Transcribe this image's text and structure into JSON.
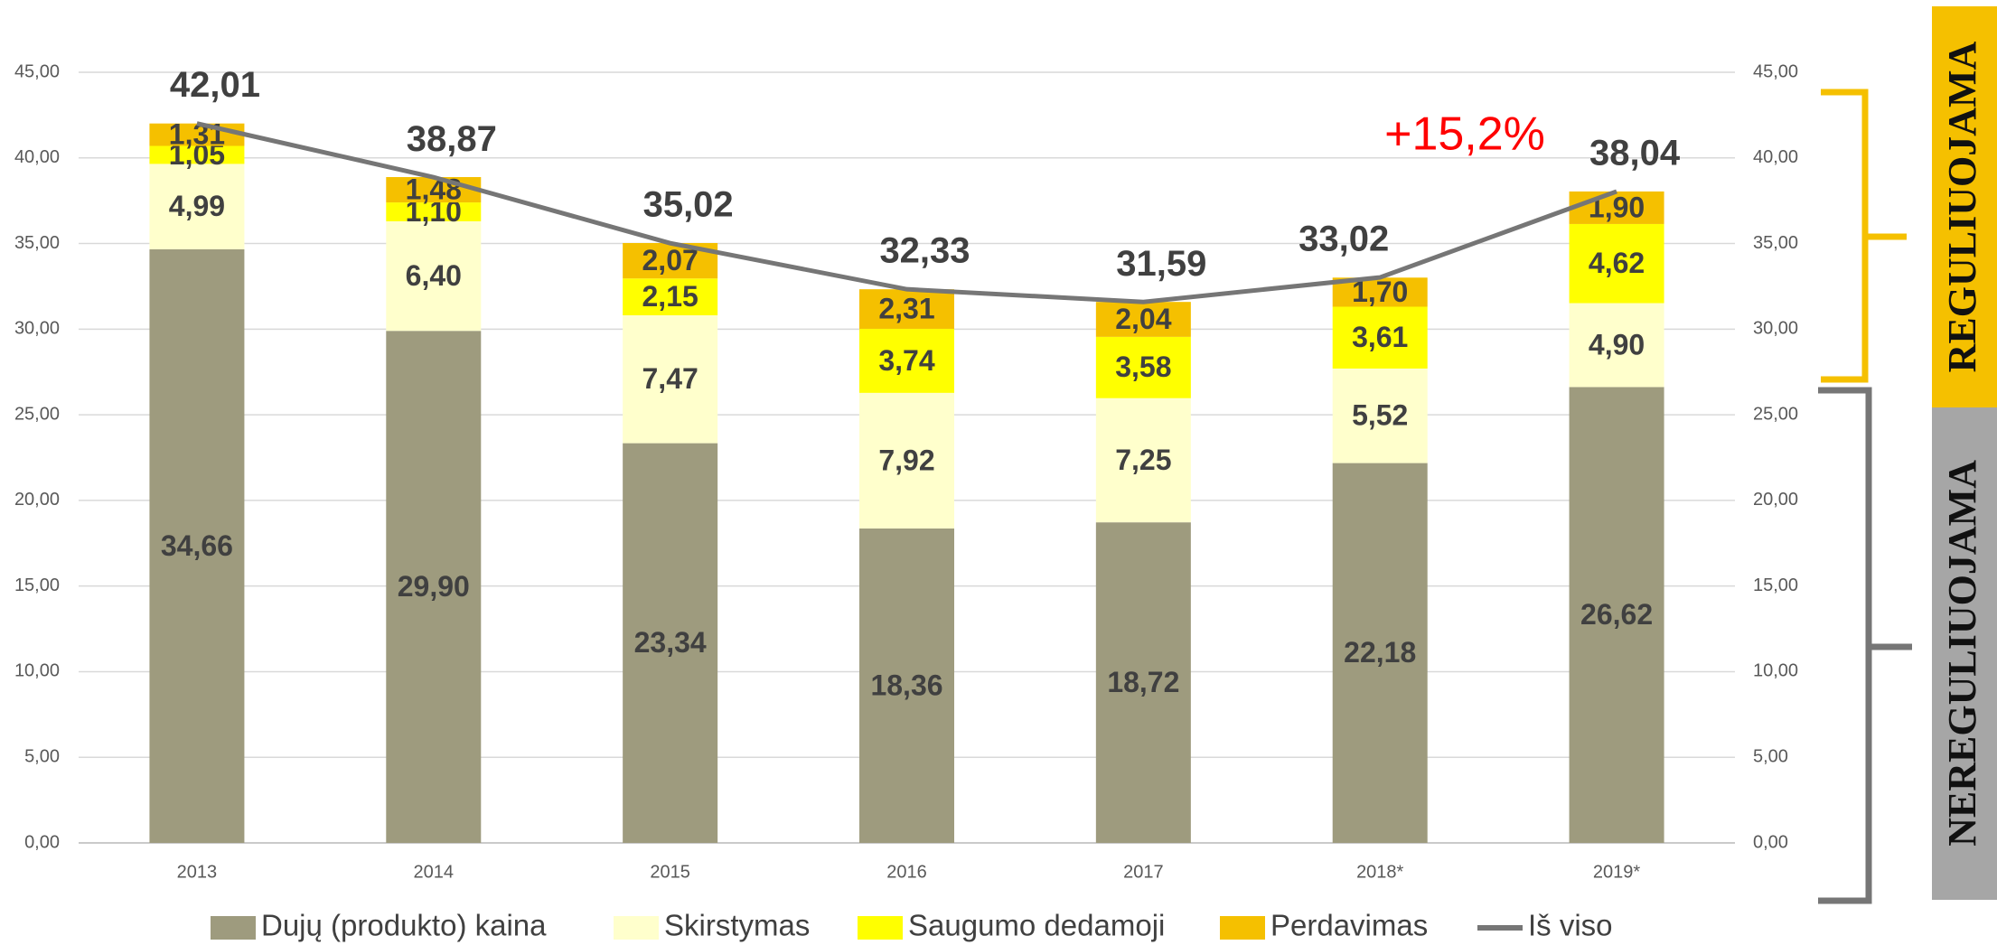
{
  "chart_data": {
    "type": "bar",
    "stacked": true,
    "categories": [
      "2013",
      "2014",
      "2015",
      "2016",
      "2017",
      "2018*",
      "2019*"
    ],
    "series": [
      {
        "name": "Dujų (produkto) kaina",
        "type": "bar",
        "color": "#9e9b7e",
        "values": [
          34.66,
          29.9,
          23.34,
          18.36,
          18.72,
          22.18,
          26.62
        ],
        "value_labels": [
          "34,66",
          "29,90",
          "23,34",
          "18,36",
          "18,72",
          "22,18",
          "26,62"
        ]
      },
      {
        "name": "Skirstymas",
        "type": "bar",
        "color": "#ffffcc",
        "values": [
          4.99,
          6.4,
          7.47,
          7.92,
          7.25,
          5.52,
          4.9
        ],
        "value_labels": [
          "4,99",
          "6,40",
          "7,47",
          "7,92",
          "7,25",
          "5,52",
          "4,90"
        ]
      },
      {
        "name": "Saugumo dedamoji",
        "type": "bar",
        "color": "#ffff00",
        "values": [
          1.05,
          1.1,
          2.15,
          3.74,
          3.58,
          3.61,
          4.62
        ],
        "value_labels": [
          "1,05",
          "1,10",
          "2,15",
          "3,74",
          "3,58",
          "3,61",
          "4,62"
        ]
      },
      {
        "name": "Perdavimas",
        "type": "bar",
        "color": "#f5c000",
        "values": [
          1.31,
          1.48,
          2.07,
          2.31,
          2.04,
          1.7,
          1.9
        ],
        "value_labels": [
          "1,31",
          "1,48",
          "2,07",
          "2,31",
          "2,04",
          "1,70",
          "1,90"
        ]
      },
      {
        "name": "Iš viso",
        "type": "line",
        "color": "#767676",
        "values": [
          42.01,
          38.87,
          35.02,
          32.33,
          31.59,
          33.02,
          38.04
        ],
        "value_labels": [
          "42,01",
          "38,87",
          "35,02",
          "32,33",
          "31,59",
          "33,02",
          "38,04"
        ]
      }
    ],
    "ylim": [
      0,
      45
    ],
    "yticks": [
      {
        "value": 0,
        "label": "0,00"
      },
      {
        "value": 5,
        "label": "5,00"
      },
      {
        "value": 10,
        "label": "10,00"
      },
      {
        "value": 15,
        "label": "15,00"
      },
      {
        "value": 20,
        "label": "20,00"
      },
      {
        "value": 25,
        "label": "25,00"
      },
      {
        "value": 30,
        "label": "30,00"
      },
      {
        "value": 35,
        "label": "35,00"
      },
      {
        "value": 40,
        "label": "40,00"
      },
      {
        "value": 45,
        "label": "45,00"
      }
    ],
    "y2lim": [
      0,
      45
    ],
    "y2ticks": [
      {
        "value": 0,
        "label": "0,00"
      },
      {
        "value": 5,
        "label": "5,00"
      },
      {
        "value": 10,
        "label": "10,00"
      },
      {
        "value": 15,
        "label": "15,00"
      },
      {
        "value": 20,
        "label": "20,00"
      },
      {
        "value": 25,
        "label": "25,00"
      },
      {
        "value": 30,
        "label": "30,00"
      },
      {
        "value": 35,
        "label": "35,00"
      },
      {
        "value": 40,
        "label": "40,00"
      },
      {
        "value": 45,
        "label": "45,00"
      }
    ],
    "grid": true,
    "legend": "bottom",
    "annotations": [
      "+15,2%",
      "REGULIUOJAMA",
      "NEREGULIUOJAMA"
    ]
  }
}
